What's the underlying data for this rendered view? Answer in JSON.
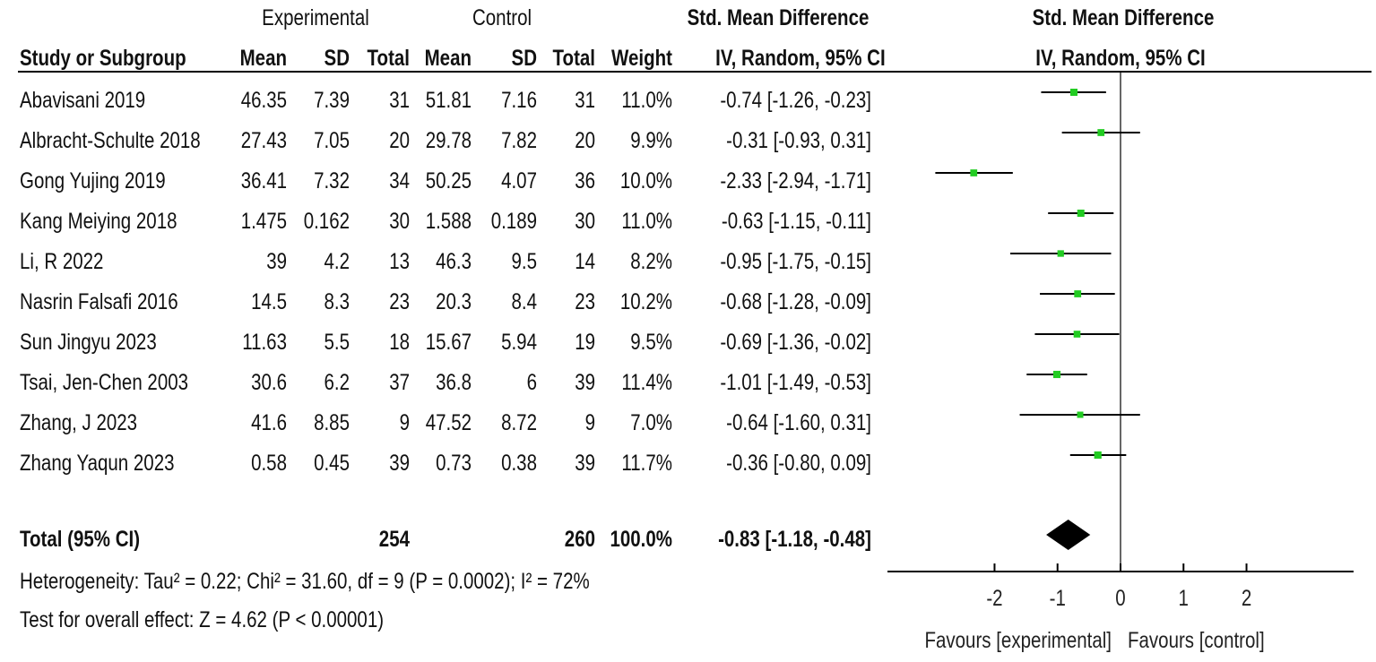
{
  "header": {
    "experimental": "Experimental",
    "control": "Control",
    "smd_title": "Std. Mean Difference",
    "study": "Study or Subgroup",
    "mean": "Mean",
    "sd": "SD",
    "total": "Total",
    "weight": "Weight",
    "method": "IV, Random, 95% CI",
    "plot_title": "Std. Mean Difference",
    "plot_method": "IV, Random, 95% CI"
  },
  "studies": [
    {
      "name": "Abavisani 2019",
      "exp_mean": "46.35",
      "exp_sd": "7.39",
      "exp_total": "31",
      "ctl_mean": "51.81",
      "ctl_sd": "7.16",
      "ctl_total": "31",
      "weight": "11.0%",
      "ci_text": "-0.74 [-1.26, -0.23]"
    },
    {
      "name": "Albracht-Schulte 2018",
      "exp_mean": "27.43",
      "exp_sd": "7.05",
      "exp_total": "20",
      "ctl_mean": "29.78",
      "ctl_sd": "7.82",
      "ctl_total": "20",
      "weight": "9.9%",
      "ci_text": "-0.31 [-0.93, 0.31]"
    },
    {
      "name": "Gong Yujing 2019",
      "exp_mean": "36.41",
      "exp_sd": "7.32",
      "exp_total": "34",
      "ctl_mean": "50.25",
      "ctl_sd": "4.07",
      "ctl_total": "36",
      "weight": "10.0%",
      "ci_text": "-2.33 [-2.94, -1.71]"
    },
    {
      "name": "Kang Meiying 2018",
      "exp_mean": "1.475",
      "exp_sd": "0.162",
      "exp_total": "30",
      "ctl_mean": "1.588",
      "ctl_sd": "0.189",
      "ctl_total": "30",
      "weight": "11.0%",
      "ci_text": "-0.63 [-1.15, -0.11]"
    },
    {
      "name": "Li, R 2022",
      "exp_mean": "39",
      "exp_sd": "4.2",
      "exp_total": "13",
      "ctl_mean": "46.3",
      "ctl_sd": "9.5",
      "ctl_total": "14",
      "weight": "8.2%",
      "ci_text": "-0.95 [-1.75, -0.15]"
    },
    {
      "name": "Nasrin Falsafi 2016",
      "exp_mean": "14.5",
      "exp_sd": "8.3",
      "exp_total": "23",
      "ctl_mean": "20.3",
      "ctl_sd": "8.4",
      "ctl_total": "23",
      "weight": "10.2%",
      "ci_text": "-0.68 [-1.28, -0.09]"
    },
    {
      "name": "Sun Jingyu 2023",
      "exp_mean": "11.63",
      "exp_sd": "5.5",
      "exp_total": "18",
      "ctl_mean": "15.67",
      "ctl_sd": "5.94",
      "ctl_total": "19",
      "weight": "9.5%",
      "ci_text": "-0.69 [-1.36, -0.02]"
    },
    {
      "name": "Tsai, Jen-Chen 2003",
      "exp_mean": "30.6",
      "exp_sd": "6.2",
      "exp_total": "37",
      "ctl_mean": "36.8",
      "ctl_sd": "6",
      "ctl_total": "39",
      "weight": "11.4%",
      "ci_text": "-1.01 [-1.49, -0.53]"
    },
    {
      "name": "Zhang, J 2023",
      "exp_mean": "41.6",
      "exp_sd": "8.85",
      "exp_total": "9",
      "ctl_mean": "47.52",
      "ctl_sd": "8.72",
      "ctl_total": "9",
      "weight": "7.0%",
      "ci_text": "-0.64 [-1.60, 0.31]"
    },
    {
      "name": "Zhang Yaqun 2023",
      "exp_mean": "0.58",
      "exp_sd": "0.45",
      "exp_total": "39",
      "ctl_mean": "0.73",
      "ctl_sd": "0.38",
      "ctl_total": "39",
      "weight": "11.7%",
      "ci_text": "-0.36 [-0.80, 0.09]"
    }
  ],
  "total": {
    "label": "Total (95% CI)",
    "exp_total": "254",
    "ctl_total": "260",
    "weight": "100.0%",
    "ci_text": "-0.83 [-1.18, -0.48]"
  },
  "footer": {
    "heterogeneity": "Heterogeneity: Tau² = 0.22; Chi² = 31.60, df = 9 (P = 0.0002); I² = 72%",
    "overall": "Test for overall effect: Z = 4.62 (P < 0.00001)"
  },
  "colors": {
    "point": "#22cc22",
    "line": "#000000",
    "diamond": "#000000"
  },
  "chart_data": {
    "type": "forest",
    "title": "Std. Mean Difference",
    "subtitle": "IV, Random, 95% CI",
    "xlim": [
      -3.7,
      3.7
    ],
    "ticks": [
      -2,
      -1,
      0,
      1,
      2
    ],
    "tick_labels": [
      "-2",
      "-1",
      "0",
      "1",
      "2"
    ],
    "label_left": "Favours [experimental]",
    "label_right": "Favours [control]",
    "studies": [
      {
        "name": "Abavisani 2019",
        "est": -0.74,
        "lo": -1.26,
        "hi": -0.23,
        "weight": 11.0
      },
      {
        "name": "Albracht-Schulte 2018",
        "est": -0.31,
        "lo": -0.93,
        "hi": 0.31,
        "weight": 9.9
      },
      {
        "name": "Gong Yujing 2019",
        "est": -2.33,
        "lo": -2.94,
        "hi": -1.71,
        "weight": 10.0
      },
      {
        "name": "Kang Meiying 2018",
        "est": -0.63,
        "lo": -1.15,
        "hi": -0.11,
        "weight": 11.0
      },
      {
        "name": "Li, R 2022",
        "est": -0.95,
        "lo": -1.75,
        "hi": -0.15,
        "weight": 8.2
      },
      {
        "name": "Nasrin Falsafi 2016",
        "est": -0.68,
        "lo": -1.28,
        "hi": -0.09,
        "weight": 10.2
      },
      {
        "name": "Sun Jingyu 2023",
        "est": -0.69,
        "lo": -1.36,
        "hi": -0.02,
        "weight": 9.5
      },
      {
        "name": "Tsai, Jen-Chen 2003",
        "est": -1.01,
        "lo": -1.49,
        "hi": -0.53,
        "weight": 11.4
      },
      {
        "name": "Zhang, J 2023",
        "est": -0.64,
        "lo": -1.6,
        "hi": 0.31,
        "weight": 7.0
      },
      {
        "name": "Zhang Yaqun 2023",
        "est": -0.36,
        "lo": -0.8,
        "hi": 0.09,
        "weight": 11.7
      }
    ],
    "pooled": {
      "est": -0.83,
      "lo": -1.18,
      "hi": -0.48
    }
  }
}
